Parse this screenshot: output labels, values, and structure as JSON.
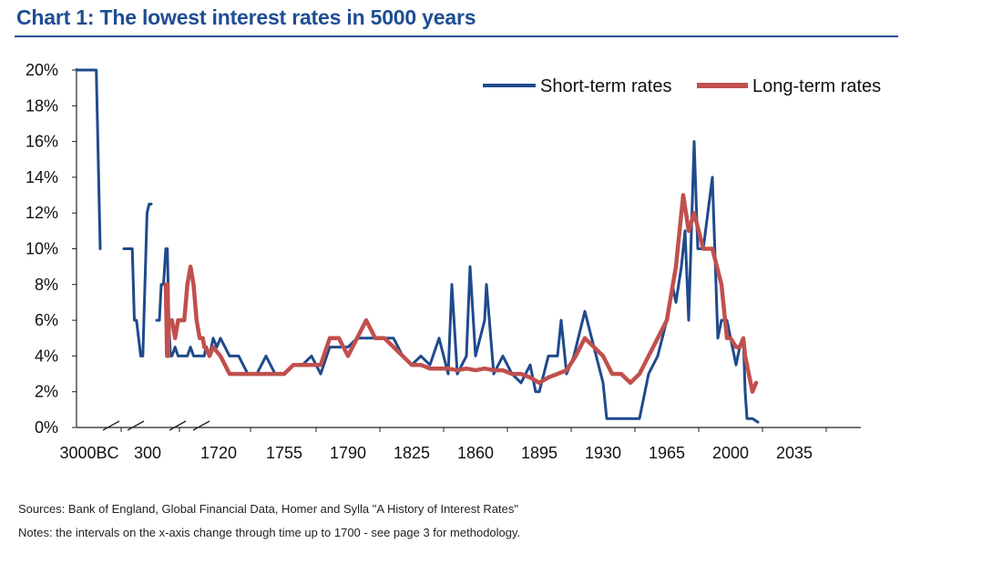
{
  "header": {
    "title": "Chart 1: The lowest interest rates in 5000 years"
  },
  "footer": {
    "sources": "Sources: Bank of England, Global Financial Data, Homer and Sylla \"A History of Interest Rates\"",
    "notes": "Notes: the intervals on the x-axis change through time up to 1700 - see page 3 for methodology."
  },
  "colors": {
    "short": "#1f4a8c",
    "long": "#c0504d",
    "title": "#1f4d93"
  },
  "chart_data": {
    "type": "line",
    "title": "Chart 1: The lowest interest rates in 5000 years",
    "ylim": [
      0,
      20
    ],
    "yticks": [
      0,
      2,
      4,
      6,
      8,
      10,
      12,
      14,
      16,
      18,
      20
    ],
    "ytick_labels": [
      "0%",
      "2%",
      "4%",
      "6%",
      "8%",
      "10%",
      "12%",
      "14%",
      "16%",
      "18%",
      "20%"
    ],
    "xtick_labels": [
      "3000BC",
      "300",
      "1720",
      "1755",
      "1790",
      "1825",
      "1860",
      "1895",
      "1930",
      "1965",
      "2000",
      "2035"
    ],
    "x_axis_note": "axis breaks between 3000BC and 1700; intervals change through time",
    "legend_position": "top-right",
    "series": [
      {
        "name": "Short-term rates",
        "segments": [
          [
            [
              -3000,
              20
            ],
            [
              -2800,
              20
            ],
            [
              -2500,
              20
            ],
            [
              -2400,
              10
            ]
          ],
          [
            [
              -700,
              10
            ],
            [
              -500,
              10
            ],
            [
              -450,
              6
            ],
            [
              -400,
              6
            ],
            [
              -300,
              4
            ],
            [
              -250,
              4
            ],
            [
              -200,
              8
            ],
            [
              -150,
              12
            ],
            [
              -100,
              12.5
            ],
            [
              -50,
              12.5
            ]
          ],
          [
            [
              200,
              6
            ],
            [
              260,
              6
            ],
            [
              300,
              8
            ],
            [
              350,
              8
            ],
            [
              400,
              10
            ],
            [
              450,
              10
            ],
            [
              500,
              6
            ],
            [
              550,
              4
            ],
            [
              600,
              4
            ],
            [
              700,
              4.5
            ],
            [
              800,
              4
            ],
            [
              900,
              4
            ],
            [
              1000,
              4
            ],
            [
              1100,
              4
            ],
            [
              1200,
              4.5
            ],
            [
              1300,
              4
            ],
            [
              1400,
              4
            ],
            [
              1500,
              4
            ],
            [
              1600,
              4
            ],
            [
              1650,
              4
            ],
            [
              1700,
              4.5
            ]
          ],
          [
            [
              1700,
              4.5
            ],
            [
              1705,
              4
            ],
            [
              1710,
              5
            ],
            [
              1715,
              4.5
            ],
            [
              1720,
              5
            ],
            [
              1725,
              4
            ],
            [
              1730,
              4
            ],
            [
              1735,
              3
            ],
            [
              1740,
              3
            ],
            [
              1745,
              4
            ],
            [
              1750,
              3
            ],
            [
              1755,
              3
            ],
            [
              1760,
              3.5
            ],
            [
              1765,
              3.5
            ],
            [
              1770,
              4
            ],
            [
              1775,
              3
            ],
            [
              1780,
              4.5
            ],
            [
              1785,
              4.5
            ],
            [
              1790,
              4.5
            ],
            [
              1795,
              5
            ],
            [
              1800,
              5
            ],
            [
              1805,
              5
            ],
            [
              1810,
              5
            ],
            [
              1815,
              5
            ],
            [
              1820,
              4
            ],
            [
              1825,
              3.5
            ],
            [
              1830,
              4
            ],
            [
              1835,
              3.5
            ],
            [
              1840,
              5
            ],
            [
              1845,
              3
            ],
            [
              1847,
              8
            ],
            [
              1850,
              3
            ],
            [
              1855,
              4
            ],
            [
              1857,
              9
            ],
            [
              1860,
              4
            ],
            [
              1865,
              6
            ],
            [
              1866,
              8
            ],
            [
              1870,
              3
            ],
            [
              1875,
              4
            ],
            [
              1880,
              3
            ],
            [
              1885,
              2.5
            ],
            [
              1890,
              3.5
            ],
            [
              1893,
              2
            ],
            [
              1895,
              2
            ],
            [
              1900,
              4
            ],
            [
              1905,
              4
            ],
            [
              1907,
              6
            ],
            [
              1910,
              3
            ],
            [
              1914,
              4
            ],
            [
              1920,
              6.5
            ],
            [
              1925,
              4.5
            ],
            [
              1930,
              2.5
            ],
            [
              1932,
              0.5
            ],
            [
              1935,
              0.5
            ],
            [
              1940,
              0.5
            ],
            [
              1945,
              0.5
            ],
            [
              1950,
              0.5
            ],
            [
              1955,
              3
            ],
            [
              1960,
              4
            ],
            [
              1965,
              6
            ],
            [
              1968,
              8
            ],
            [
              1970,
              7
            ],
            [
              1973,
              9
            ],
            [
              1975,
              11
            ],
            [
              1977,
              6
            ],
            [
              1980,
              16
            ],
            [
              1982,
              10
            ],
            [
              1985,
              10
            ],
            [
              1990,
              14
            ],
            [
              1993,
              5
            ],
            [
              1995,
              6
            ],
            [
              1998,
              6
            ],
            [
              2000,
              5
            ],
            [
              2003,
              3.5
            ],
            [
              2005,
              4.5
            ],
            [
              2007,
              5
            ],
            [
              2008,
              2
            ],
            [
              2009,
              0.5
            ],
            [
              2012,
              0.5
            ],
            [
              2015,
              0.3
            ]
          ]
        ]
      },
      {
        "name": "Long-term rates",
        "segments": [
          [
            [
              400,
              8
            ],
            [
              420,
              6
            ],
            [
              440,
              4
            ],
            [
              460,
              8
            ],
            [
              480,
              4
            ],
            [
              500,
              6
            ],
            [
              600,
              6
            ],
            [
              700,
              5
            ],
            [
              800,
              6
            ],
            [
              900,
              6
            ],
            [
              1000,
              6
            ],
            [
              1100,
              8
            ],
            [
              1200,
              9
            ],
            [
              1300,
              8
            ],
            [
              1400,
              6
            ],
            [
              1500,
              5
            ],
            [
              1600,
              5
            ],
            [
              1650,
              4.5
            ],
            [
              1700,
              4.5
            ],
            [
              1705,
              4
            ],
            [
              1710,
              4.5
            ],
            [
              1720,
              4
            ],
            [
              1725,
              3
            ],
            [
              1730,
              3
            ],
            [
              1735,
              3
            ],
            [
              1740,
              3
            ],
            [
              1745,
              3
            ],
            [
              1750,
              3
            ],
            [
              1755,
              3
            ],
            [
              1760,
              3.5
            ],
            [
              1765,
              3.5
            ],
            [
              1770,
              3.5
            ],
            [
              1775,
              3.5
            ],
            [
              1780,
              5
            ],
            [
              1785,
              5
            ],
            [
              1790,
              4
            ],
            [
              1795,
              5
            ],
            [
              1800,
              6
            ],
            [
              1805,
              5
            ],
            [
              1810,
              5
            ],
            [
              1815,
              4.5
            ],
            [
              1820,
              4
            ],
            [
              1825,
              3.5
            ],
            [
              1830,
              3.5
            ],
            [
              1835,
              3.3
            ],
            [
              1840,
              3.3
            ],
            [
              1845,
              3.3
            ],
            [
              1850,
              3.2
            ],
            [
              1855,
              3.3
            ],
            [
              1860,
              3.2
            ],
            [
              1865,
              3.3
            ],
            [
              1870,
              3.2
            ],
            [
              1875,
              3.2
            ],
            [
              1880,
              3.0
            ],
            [
              1885,
              3.0
            ],
            [
              1890,
              2.8
            ],
            [
              1895,
              2.5
            ],
            [
              1900,
              2.8
            ],
            [
              1905,
              3
            ],
            [
              1910,
              3.2
            ],
            [
              1915,
              4
            ],
            [
              1920,
              5
            ],
            [
              1925,
              4.5
            ],
            [
              1930,
              4
            ],
            [
              1935,
              3
            ],
            [
              1940,
              3
            ],
            [
              1945,
              2.5
            ],
            [
              1950,
              3
            ],
            [
              1955,
              4
            ],
            [
              1960,
              5
            ],
            [
              1965,
              6
            ],
            [
              1970,
              9
            ],
            [
              1974,
              13
            ],
            [
              1977,
              11
            ],
            [
              1980,
              12
            ],
            [
              1985,
              10
            ],
            [
              1990,
              10
            ],
            [
              1995,
              8
            ],
            [
              1998,
              5
            ],
            [
              2000,
              5
            ],
            [
              2003,
              4.5
            ],
            [
              2005,
              4.5
            ],
            [
              2007,
              5
            ],
            [
              2008,
              4
            ],
            [
              2010,
              3
            ],
            [
              2012,
              2
            ],
            [
              2014,
              2.5
            ]
          ]
        ]
      }
    ]
  }
}
